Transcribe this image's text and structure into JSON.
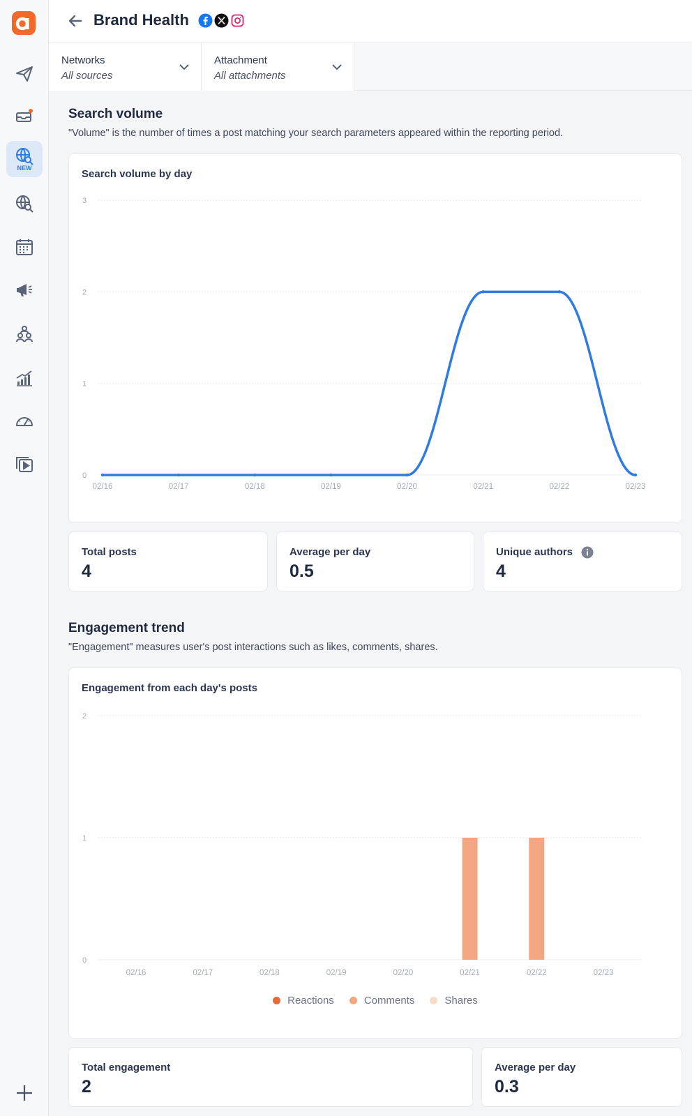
{
  "app": {
    "page_title": "Brand Health",
    "networks": [
      "facebook",
      "x",
      "instagram"
    ]
  },
  "sidebar": {
    "items": [
      {
        "icon": "paper-plane-icon"
      },
      {
        "icon": "inbox-icon"
      },
      {
        "icon": "globe-search-icon",
        "badge": "NEW",
        "active": true
      },
      {
        "icon": "globe-search-icon"
      },
      {
        "icon": "calendar-icon"
      },
      {
        "icon": "megaphone-icon"
      },
      {
        "icon": "people-icon"
      },
      {
        "icon": "bar-chart-icon"
      },
      {
        "icon": "gauge-icon"
      },
      {
        "icon": "media-library-icon"
      }
    ],
    "add_icon": "plus-icon"
  },
  "filters": {
    "networks": {
      "label": "Networks",
      "value": "All sources"
    },
    "attachment": {
      "label": "Attachment",
      "value": "All attachments"
    }
  },
  "search_volume": {
    "title": "Search volume",
    "description": "\"Volume\" is the number of times a post matching your search parameters appeared within the reporting period.",
    "chart_title": "Search volume by day",
    "stats": [
      {
        "label": "Total posts",
        "value": "4"
      },
      {
        "label": "Average per day",
        "value": "0.5"
      },
      {
        "label": "Unique authors",
        "value": "4"
      }
    ]
  },
  "engagement": {
    "title": "Engagement trend",
    "description": "\"Engagement\" measures user's post interactions such as likes, comments, shares.",
    "chart_title": "Engagement from each day's posts",
    "stats": [
      {
        "label": "Total engagement",
        "value": "2"
      },
      {
        "label": "Average per day",
        "value": "0.3"
      }
    ]
  },
  "colors": {
    "line": "#2f7be0",
    "reactions": "#e8683a",
    "comments": "#f2a682",
    "shares": "#f8dcc8",
    "accent": "#f26a2a"
  },
  "chart_data": [
    {
      "type": "line",
      "title": "Search volume by day",
      "x": [
        "02/16",
        "02/17",
        "02/18",
        "02/19",
        "02/20",
        "02/21",
        "02/22",
        "02/23"
      ],
      "series": [
        {
          "values": [
            0,
            0,
            0,
            0,
            0,
            2,
            2,
            0
          ]
        }
      ],
      "ylim": [
        0,
        3
      ],
      "yticks": [
        0,
        1,
        2,
        3
      ],
      "grid": true
    },
    {
      "type": "bar",
      "title": "Engagement from each day's posts",
      "categories": [
        "02/16",
        "02/17",
        "02/18",
        "02/19",
        "02/20",
        "02/21",
        "02/22",
        "02/23"
      ],
      "series": [
        {
          "name": "Reactions",
          "values": [
            0,
            0,
            0,
            0,
            0,
            0,
            0,
            0
          ]
        },
        {
          "name": "Comments",
          "values": [
            0,
            0,
            0,
            0,
            0,
            1,
            1,
            0
          ]
        },
        {
          "name": "Shares",
          "values": [
            0,
            0,
            0,
            0,
            0,
            0,
            0,
            0
          ]
        }
      ],
      "ylim": [
        0,
        2
      ],
      "yticks": [
        0,
        1,
        2
      ],
      "grid": true,
      "legend_position": "bottom-center"
    }
  ]
}
